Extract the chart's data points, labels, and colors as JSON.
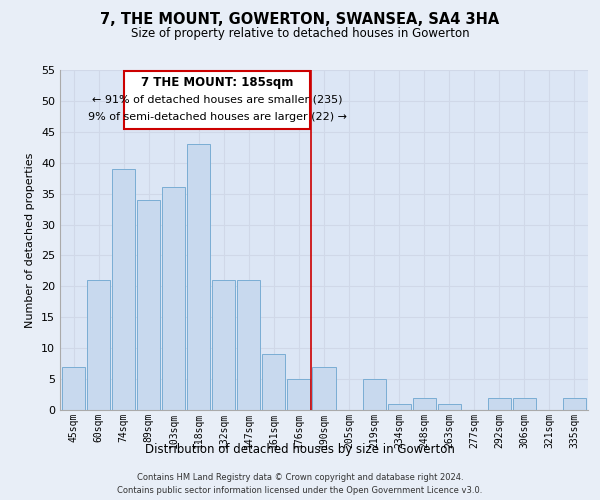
{
  "title": "7, THE MOUNT, GOWERTON, SWANSEA, SA4 3HA",
  "subtitle": "Size of property relative to detached houses in Gowerton",
  "xlabel": "Distribution of detached houses by size in Gowerton",
  "ylabel": "Number of detached properties",
  "categories": [
    "45sqm",
    "60sqm",
    "74sqm",
    "89sqm",
    "103sqm",
    "118sqm",
    "132sqm",
    "147sqm",
    "161sqm",
    "176sqm",
    "190sqm",
    "205sqm",
    "219sqm",
    "234sqm",
    "248sqm",
    "263sqm",
    "277sqm",
    "292sqm",
    "306sqm",
    "321sqm",
    "335sqm"
  ],
  "values": [
    7,
    21,
    39,
    34,
    36,
    43,
    21,
    21,
    9,
    5,
    7,
    0,
    5,
    1,
    2,
    1,
    0,
    2,
    2,
    0,
    2
  ],
  "bar_color": "#c8d9ee",
  "bar_edge_color": "#7aadd4",
  "vline_x": 9.5,
  "vline_color": "#cc0000",
  "ylim": [
    0,
    55
  ],
  "yticks": [
    0,
    5,
    10,
    15,
    20,
    25,
    30,
    35,
    40,
    45,
    50,
    55
  ],
  "annotation_title": "7 THE MOUNT: 185sqm",
  "annotation_line1": "← 91% of detached houses are smaller (235)",
  "annotation_line2": "9% of semi-detached houses are larger (22) →",
  "annotation_box_color": "#ffffff",
  "annotation_box_edge": "#cc0000",
  "footer_line1": "Contains HM Land Registry data © Crown copyright and database right 2024.",
  "footer_line2": "Contains public sector information licensed under the Open Government Licence v3.0.",
  "background_color": "#e8eef7",
  "grid_color": "#d0d8e8",
  "plot_bg_color": "#dce6f5"
}
